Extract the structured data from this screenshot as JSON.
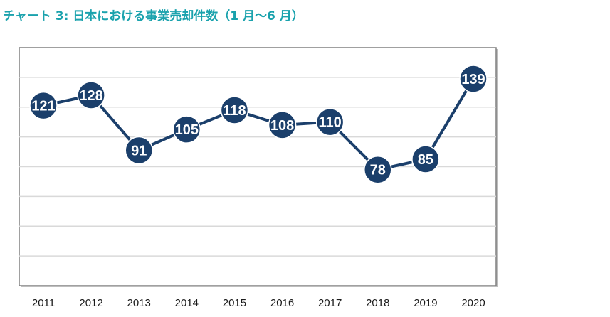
{
  "title": "チャート 3: 日本における事業売却件数（1 月～6 月）",
  "colors": {
    "title": "#1aa2ad",
    "line": "#1b3f6b",
    "marker": "#1b3f6b",
    "marker_text": "#ffffff",
    "grid": "#d9d9d9",
    "frame": "#808080",
    "axis_text": "#1a1a1a"
  },
  "chart_data": {
    "type": "line",
    "categories": [
      "2011",
      "2012",
      "2013",
      "2014",
      "2015",
      "2016",
      "2017",
      "2018",
      "2019",
      "2020"
    ],
    "series": [
      {
        "values": [
          121,
          128,
          91,
          105,
          118,
          108,
          110,
          78,
          85,
          139
        ]
      }
    ],
    "title": "チャート 3: 日本における事業売却件数（1 月～6 月）",
    "xlabel": "",
    "ylabel": "",
    "ylim": [
      0,
      160
    ],
    "grid": true,
    "data_labels": true,
    "y_tick_labels_shown": false,
    "legend": "none"
  }
}
